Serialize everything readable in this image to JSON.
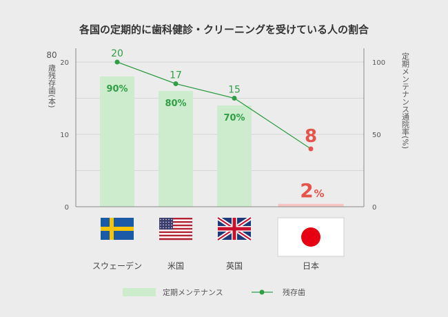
{
  "chart_data": {
    "type": "bar+line",
    "title": "各国の定期的に歯科健診・クリーニングを受けている人の割合",
    "categories": [
      "スウェーデン",
      "米国",
      "英国",
      "日本"
    ],
    "left_axis": {
      "label_number": "80",
      "label_text": "歳残存歯(本)",
      "ticks": [
        "20",
        "10",
        "0"
      ],
      "range": [
        0,
        20
      ]
    },
    "right_axis": {
      "label": "定期メンテナンス通院率(%)",
      "ticks": [
        "100",
        "50",
        "0"
      ],
      "range": [
        0,
        100
      ]
    },
    "series": [
      {
        "name": "定期メンテナンス",
        "kind": "bar",
        "axis": "right",
        "values": [
          90,
          80,
          70,
          2
        ],
        "labels": [
          "90%",
          "80%",
          "70%",
          "2"
        ],
        "label_suffix_last": "%",
        "color": "#cdeccd",
        "highlight_color": "#f7c4c0"
      },
      {
        "name": "残存歯",
        "kind": "line",
        "axis": "left",
        "values": [
          20,
          17,
          15,
          8
        ],
        "labels": [
          "20",
          "17",
          "15",
          "8"
        ],
        "color": "#2f9e44",
        "highlight_color": "#e5534b"
      }
    ],
    "legend": {
      "items": [
        "定期メンテナンス",
        "残存歯"
      ],
      "placement": "bottom"
    },
    "flags": [
      "sweden-flag-icon",
      "usa-flag-icon",
      "uk-flag-icon",
      "japan-flag-icon"
    ],
    "grid": true
  }
}
